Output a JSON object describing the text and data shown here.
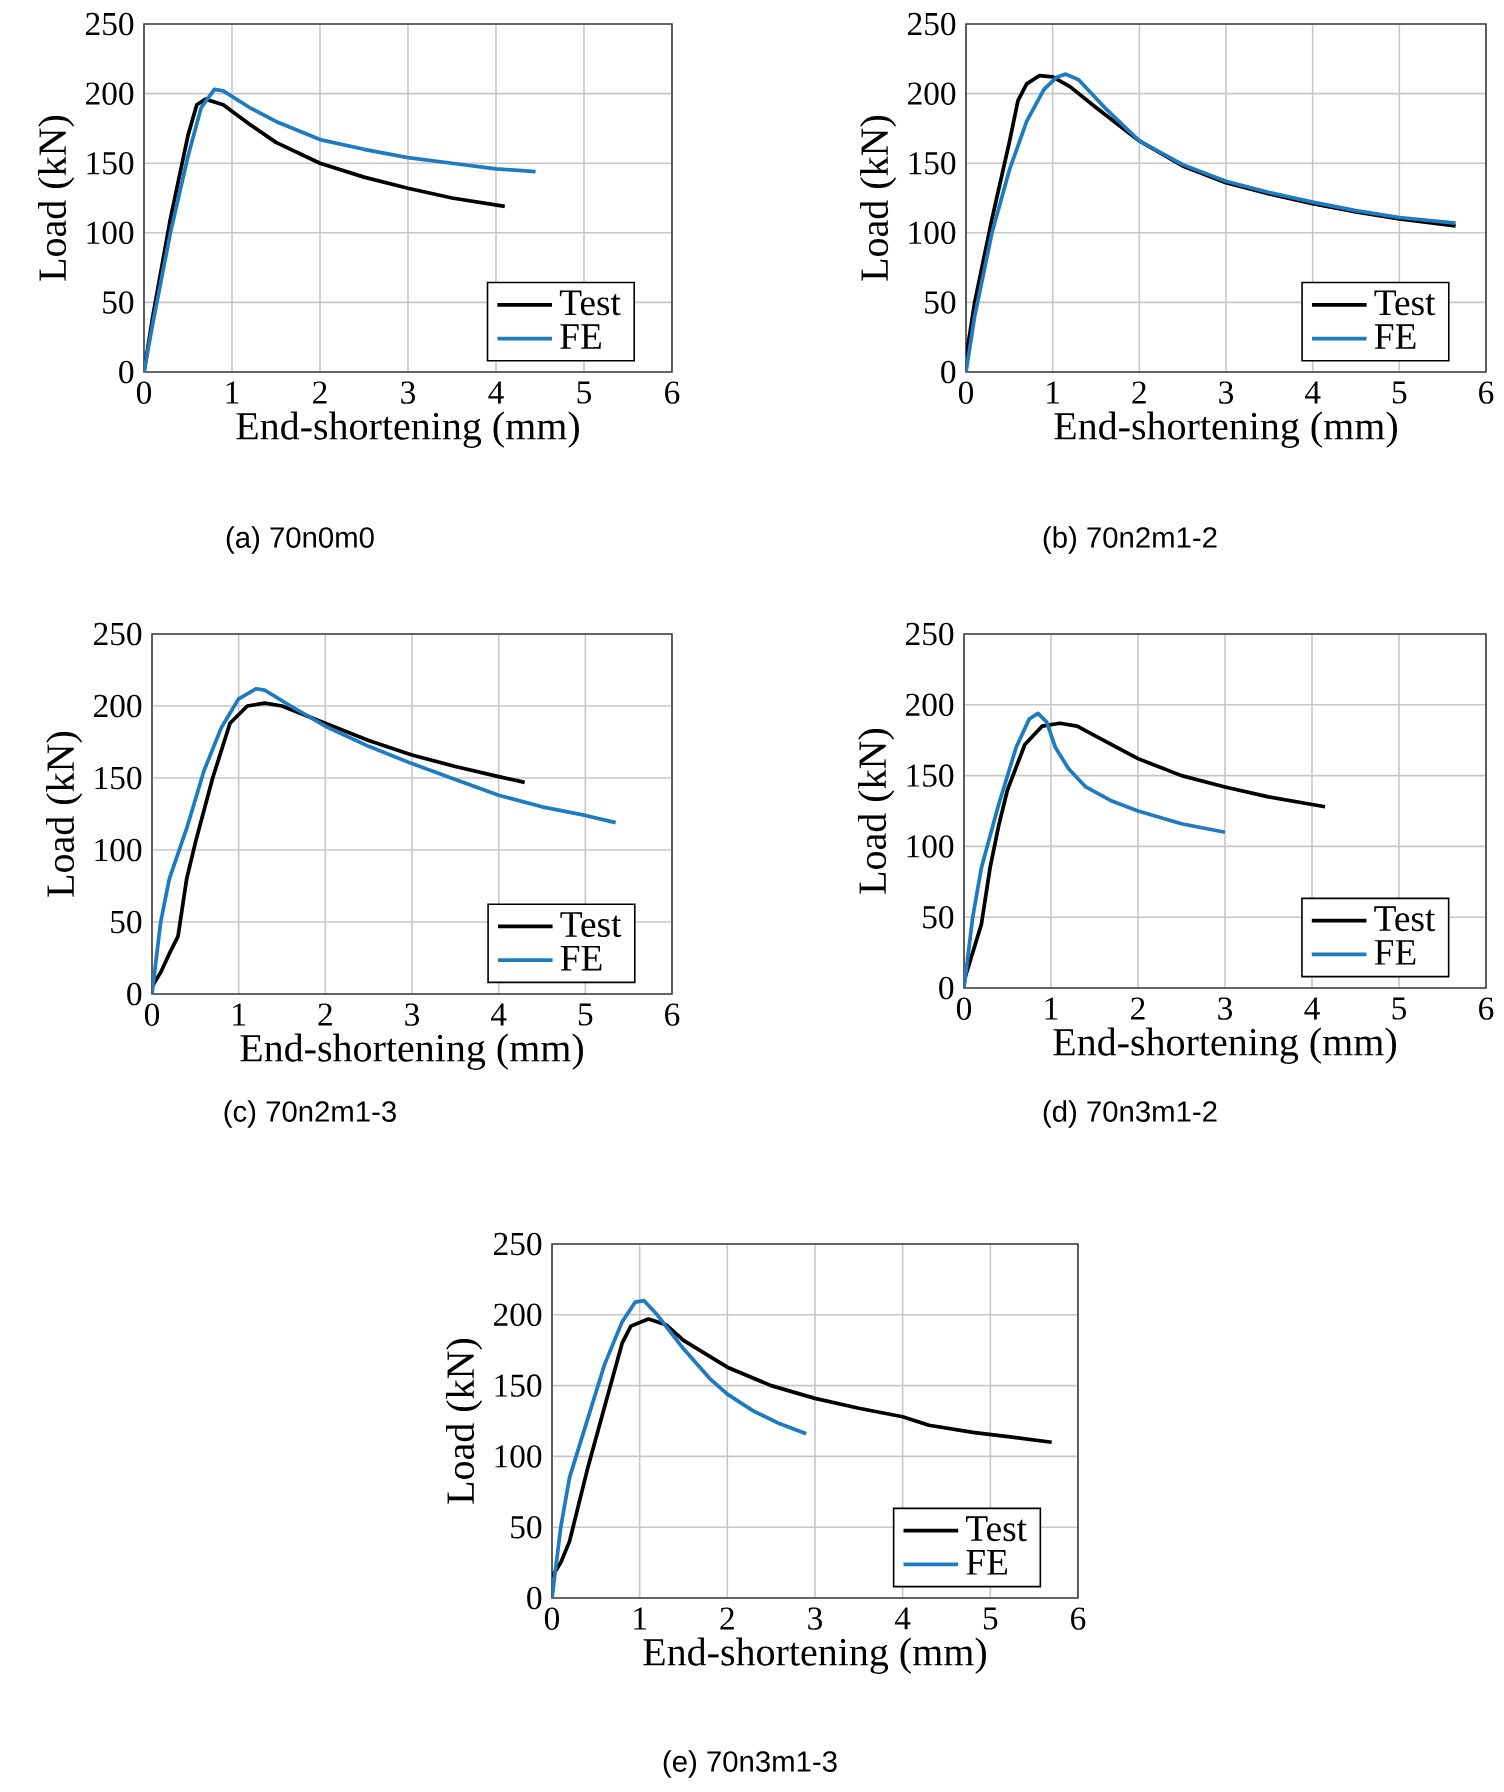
{
  "chart_data": [
    {
      "type": "line",
      "xlabel": "End-shortening (mm)",
      "ylabel": "Load (kN)",
      "annotations": [
        "(a) 70n0m0"
      ],
      "xlim": [
        0,
        6
      ],
      "ylim": [
        0,
        250
      ],
      "xticks": [
        0,
        1,
        2,
        3,
        4,
        5,
        6
      ],
      "yticks": [
        0,
        50,
        100,
        150,
        200,
        250
      ],
      "grid": true,
      "legend": "bottom right",
      "series": [
        {
          "name": "Test",
          "color": "#000000",
          "x": [
            0,
            0.1,
            0.3,
            0.5,
            0.6,
            0.7,
            0.9,
            1.2,
            1.5,
            2,
            2.5,
            3,
            3.5,
            4.1
          ],
          "values": [
            0,
            40,
            110,
            170,
            192,
            196,
            192,
            178,
            165,
            150,
            140,
            132,
            125,
            119
          ]
        },
        {
          "name": "FE",
          "color": "#1f7bc1",
          "x": [
            0,
            0.1,
            0.3,
            0.5,
            0.65,
            0.8,
            0.9,
            1.2,
            1.5,
            2,
            2.5,
            3,
            3.5,
            4,
            4.45
          ],
          "values": [
            0,
            35,
            100,
            155,
            190,
            203,
            202,
            190,
            180,
            167,
            160,
            154,
            150,
            146,
            144
          ]
        }
      ]
    },
    {
      "type": "line",
      "xlabel": "End-shortening (mm)",
      "ylabel": "Load (kN)",
      "annotations": [
        "(b) 70n2m1-2"
      ],
      "xlim": [
        0,
        6
      ],
      "ylim": [
        0,
        250
      ],
      "xticks": [
        0,
        1,
        2,
        3,
        4,
        5,
        6
      ],
      "yticks": [
        0,
        50,
        100,
        150,
        200,
        250
      ],
      "grid": true,
      "legend": "bottom right",
      "series": [
        {
          "name": "Test",
          "color": "#000000",
          "x": [
            0,
            0.1,
            0.3,
            0.5,
            0.6,
            0.7,
            0.85,
            1,
            1.2,
            1.5,
            2,
            2.5,
            3,
            3.5,
            4,
            4.5,
            5,
            5.65
          ],
          "values": [
            10,
            50,
            110,
            165,
            195,
            207,
            213,
            212,
            205,
            190,
            166,
            148,
            136,
            128,
            121,
            115,
            110,
            105
          ]
        },
        {
          "name": "FE",
          "color": "#1f7bc1",
          "x": [
            0,
            0.1,
            0.3,
            0.5,
            0.7,
            0.9,
            1.05,
            1.15,
            1.3,
            1.6,
            2,
            2.5,
            3,
            3.5,
            4,
            4.5,
            5,
            5.65
          ],
          "values": [
            0,
            40,
            100,
            145,
            180,
            203,
            212,
            214,
            210,
            190,
            166,
            149,
            137,
            129,
            122,
            116,
            111,
            107
          ]
        }
      ]
    },
    {
      "type": "line",
      "xlabel": "End-shortening (mm)",
      "ylabel": "Load (kN)",
      "annotations": [
        "(c) 70n2m1-3"
      ],
      "xlim": [
        0,
        6
      ],
      "ylim": [
        0,
        250
      ],
      "xticks": [
        0,
        1,
        2,
        3,
        4,
        5,
        6
      ],
      "yticks": [
        0,
        50,
        100,
        150,
        200,
        250
      ],
      "grid": true,
      "legend": "bottom right",
      "series": [
        {
          "name": "Test",
          "color": "#000000",
          "x": [
            0,
            0.1,
            0.2,
            0.3,
            0.4,
            0.5,
            0.7,
            0.9,
            1.1,
            1.3,
            1.5,
            2,
            2.5,
            3,
            3.5,
            4,
            4.3
          ],
          "values": [
            5,
            15,
            28,
            40,
            80,
            105,
            150,
            188,
            200,
            202,
            200,
            188,
            176,
            166,
            158,
            151,
            147
          ]
        },
        {
          "name": "FE",
          "color": "#1f7bc1",
          "x": [
            0,
            0.1,
            0.2,
            0.4,
            0.6,
            0.8,
            1,
            1.2,
            1.3,
            1.6,
            2,
            2.5,
            3,
            3.5,
            4,
            4.5,
            5,
            5.35
          ],
          "values": [
            0,
            50,
            80,
            115,
            155,
            185,
            205,
            212,
            211,
            200,
            186,
            172,
            160,
            149,
            138,
            130,
            124,
            119
          ]
        }
      ]
    },
    {
      "type": "line",
      "xlabel": "End-shortening (mm)",
      "ylabel": "Load (kN)",
      "annotations": [
        "(d) 70n3m1-2"
      ],
      "xlim": [
        0,
        6
      ],
      "ylim": [
        0,
        250
      ],
      "xticks": [
        0,
        1,
        2,
        3,
        4,
        5,
        6
      ],
      "yticks": [
        0,
        50,
        100,
        150,
        200,
        250
      ],
      "grid": true,
      "legend": "bottom right",
      "series": [
        {
          "name": "Test",
          "color": "#000000",
          "x": [
            0,
            0.1,
            0.2,
            0.3,
            0.4,
            0.5,
            0.7,
            0.9,
            1.1,
            1.3,
            1.6,
            2,
            2.5,
            3,
            3.5,
            4.15
          ],
          "values": [
            5,
            25,
            45,
            85,
            115,
            140,
            172,
            185,
            187,
            185,
            175,
            162,
            150,
            142,
            135,
            128
          ]
        },
        {
          "name": "FE",
          "color": "#1f7bc1",
          "x": [
            0,
            0.1,
            0.2,
            0.4,
            0.6,
            0.75,
            0.85,
            0.95,
            1.05,
            1.2,
            1.4,
            1.7,
            2,
            2.5,
            3
          ],
          "values": [
            0,
            50,
            85,
            130,
            170,
            190,
            194,
            188,
            170,
            155,
            142,
            132,
            125,
            116,
            110
          ]
        }
      ]
    },
    {
      "type": "line",
      "xlabel": "End-shortening (mm)",
      "ylabel": "Load (kN)",
      "annotations": [
        "(e) 70n3m1-3"
      ],
      "xlim": [
        0,
        6
      ],
      "ylim": [
        0,
        250
      ],
      "xticks": [
        0,
        1,
        2,
        3,
        4,
        5,
        6
      ],
      "yticks": [
        0,
        50,
        100,
        150,
        200,
        250
      ],
      "grid": true,
      "legend": "bottom right",
      "series": [
        {
          "name": "Test",
          "color": "#000000",
          "x": [
            0,
            0.1,
            0.2,
            0.4,
            0.6,
            0.8,
            0.9,
            1.1,
            1.3,
            1.5,
            2,
            2.5,
            3,
            3.5,
            4,
            4.3,
            4.8,
            5.2,
            5.7
          ],
          "values": [
            15,
            25,
            40,
            90,
            135,
            180,
            192,
            197,
            193,
            182,
            163,
            150,
            141,
            134,
            128,
            122,
            117,
            114,
            110
          ]
        },
        {
          "name": "FE",
          "color": "#1f7bc1",
          "x": [
            0,
            0.1,
            0.2,
            0.4,
            0.6,
            0.8,
            0.95,
            1.05,
            1.2,
            1.5,
            1.8,
            2,
            2.3,
            2.6,
            2.9
          ],
          "values": [
            0,
            50,
            85,
            125,
            165,
            195,
            209,
            210,
            200,
            176,
            155,
            144,
            132,
            123,
            116
          ]
        }
      ]
    }
  ]
}
